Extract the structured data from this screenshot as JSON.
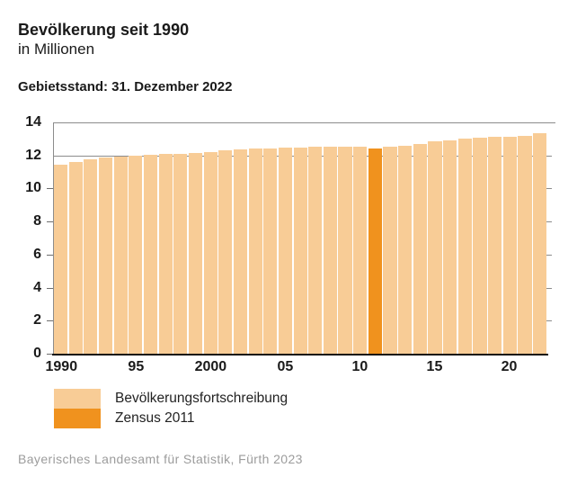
{
  "header": {
    "title": "Bevölkerung seit 1990",
    "subtitle": "in Millionen",
    "note": "Gebietsstand: 31. Dezember 2022"
  },
  "legend": {
    "items": [
      {
        "label": "Bevölkerungsfortschreibung",
        "color": "#F8CC96"
      },
      {
        "label": "Zensus 2011",
        "color": "#F0921E"
      }
    ]
  },
  "footer": {
    "source": "Bayerisches Landesamt für Statistik, Fürth 2023"
  },
  "colors": {
    "bar_light": "#F8CC96",
    "bar_highlight": "#F0921E",
    "axis_gray": "#8c8c8c",
    "axis_black": "#111111",
    "text": "#1a1a1a",
    "footer_text": "#9c9c9c"
  },
  "chart_data": {
    "type": "bar",
    "title": "Bevölkerung seit 1990",
    "subtitle": "in Millionen",
    "note": "Gebietsstand: 31. Dezember 2022",
    "xlabel": "",
    "ylabel": "in Millionen",
    "ylim": [
      0,
      14
    ],
    "yticks": [
      0,
      2,
      4,
      6,
      8,
      10,
      12,
      14
    ],
    "gridlines": [
      12,
      14
    ],
    "legend_position": "bottom-left",
    "xticks": [
      {
        "index": 0,
        "label": "1990"
      },
      {
        "index": 5,
        "label": "95"
      },
      {
        "index": 10,
        "label": "2000"
      },
      {
        "index": 15,
        "label": "05"
      },
      {
        "index": 20,
        "label": "10"
      },
      {
        "index": 25,
        "label": "15"
      },
      {
        "index": 30,
        "label": "20"
      }
    ],
    "series": [
      {
        "name": "Bevölkerungsfortschreibung",
        "color": "#F8CC96"
      },
      {
        "name": "Zensus 2011",
        "color": "#F0921E"
      }
    ],
    "points": [
      {
        "year": 1990,
        "value": 11.45,
        "series": 0
      },
      {
        "year": 1991,
        "value": 11.6,
        "series": 0
      },
      {
        "year": 1992,
        "value": 11.77,
        "series": 0
      },
      {
        "year": 1993,
        "value": 11.86,
        "series": 0
      },
      {
        "year": 1994,
        "value": 11.92,
        "series": 0
      },
      {
        "year": 1995,
        "value": 11.99,
        "series": 0
      },
      {
        "year": 1996,
        "value": 12.04,
        "series": 0
      },
      {
        "year": 1997,
        "value": 12.07,
        "series": 0
      },
      {
        "year": 1998,
        "value": 12.09,
        "series": 0
      },
      {
        "year": 1999,
        "value": 12.15,
        "series": 0
      },
      {
        "year": 2000,
        "value": 12.23,
        "series": 0
      },
      {
        "year": 2001,
        "value": 12.33,
        "series": 0
      },
      {
        "year": 2002,
        "value": 12.39,
        "series": 0
      },
      {
        "year": 2003,
        "value": 12.42,
        "series": 0
      },
      {
        "year": 2004,
        "value": 12.44,
        "series": 0
      },
      {
        "year": 2005,
        "value": 12.47,
        "series": 0
      },
      {
        "year": 2006,
        "value": 12.49,
        "series": 0
      },
      {
        "year": 2007,
        "value": 12.52,
        "series": 0
      },
      {
        "year": 2008,
        "value": 12.52,
        "series": 0
      },
      {
        "year": 2009,
        "value": 12.51,
        "series": 0
      },
      {
        "year": 2010,
        "value": 12.54,
        "series": 0
      },
      {
        "year": 2011,
        "value": 12.44,
        "series": 1
      },
      {
        "year": 2012,
        "value": 12.52,
        "series": 0
      },
      {
        "year": 2013,
        "value": 12.6,
        "series": 0
      },
      {
        "year": 2014,
        "value": 12.69,
        "series": 0
      },
      {
        "year": 2015,
        "value": 12.84,
        "series": 0
      },
      {
        "year": 2016,
        "value": 12.93,
        "series": 0
      },
      {
        "year": 2017,
        "value": 13.0,
        "series": 0
      },
      {
        "year": 2018,
        "value": 13.08,
        "series": 0
      },
      {
        "year": 2019,
        "value": 13.12,
        "series": 0
      },
      {
        "year": 2020,
        "value": 13.14,
        "series": 0
      },
      {
        "year": 2021,
        "value": 13.18,
        "series": 0
      },
      {
        "year": 2022,
        "value": 13.37,
        "series": 0
      }
    ]
  }
}
